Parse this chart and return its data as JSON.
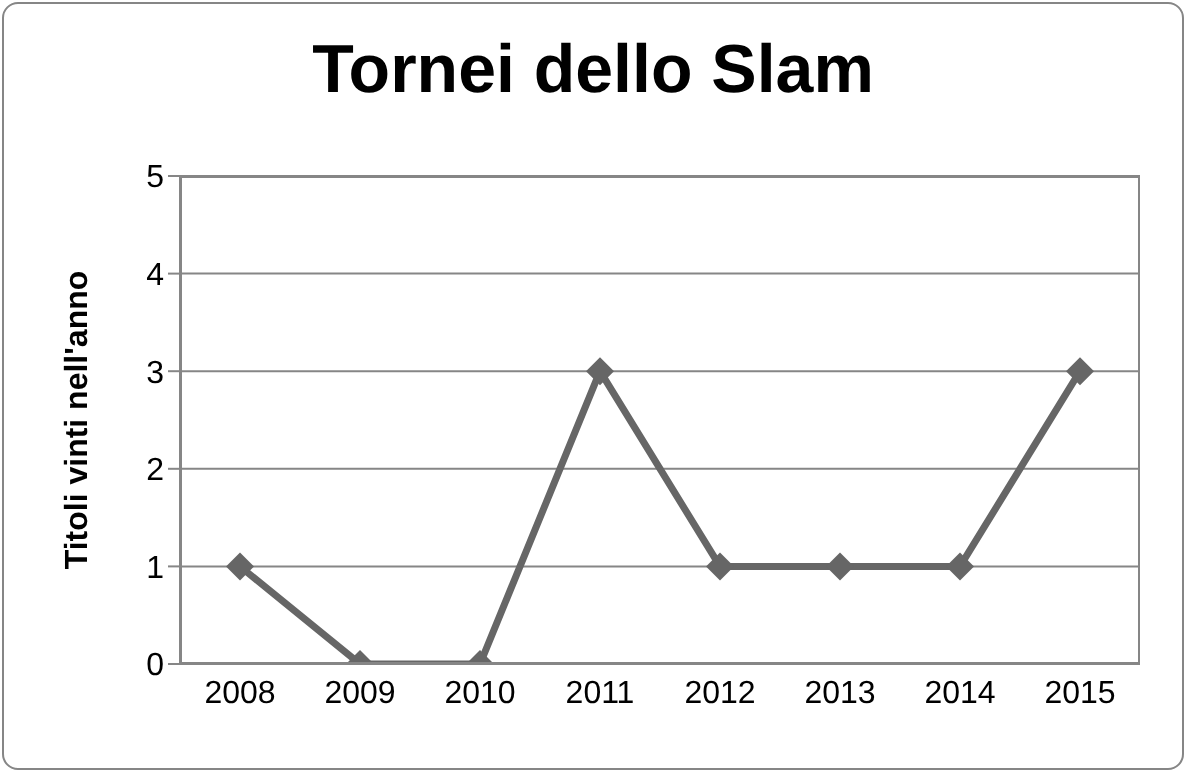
{
  "chart_data": {
    "type": "line",
    "title": "Tornei dello Slam",
    "ylabel": "Titoli vinti nell'anno",
    "categories": [
      "2008",
      "2009",
      "2010",
      "2011",
      "2012",
      "2013",
      "2014",
      "2015"
    ],
    "series": [
      {
        "color": "#666666",
        "values": [
          1,
          0,
          0,
          3,
          1,
          1,
          1,
          3
        ]
      }
    ],
    "ylim": [
      0,
      5
    ],
    "yticks": [
      0,
      1,
      2,
      3,
      4,
      5
    ],
    "grid": "y",
    "marker": "diamond",
    "line_style": "solid"
  }
}
